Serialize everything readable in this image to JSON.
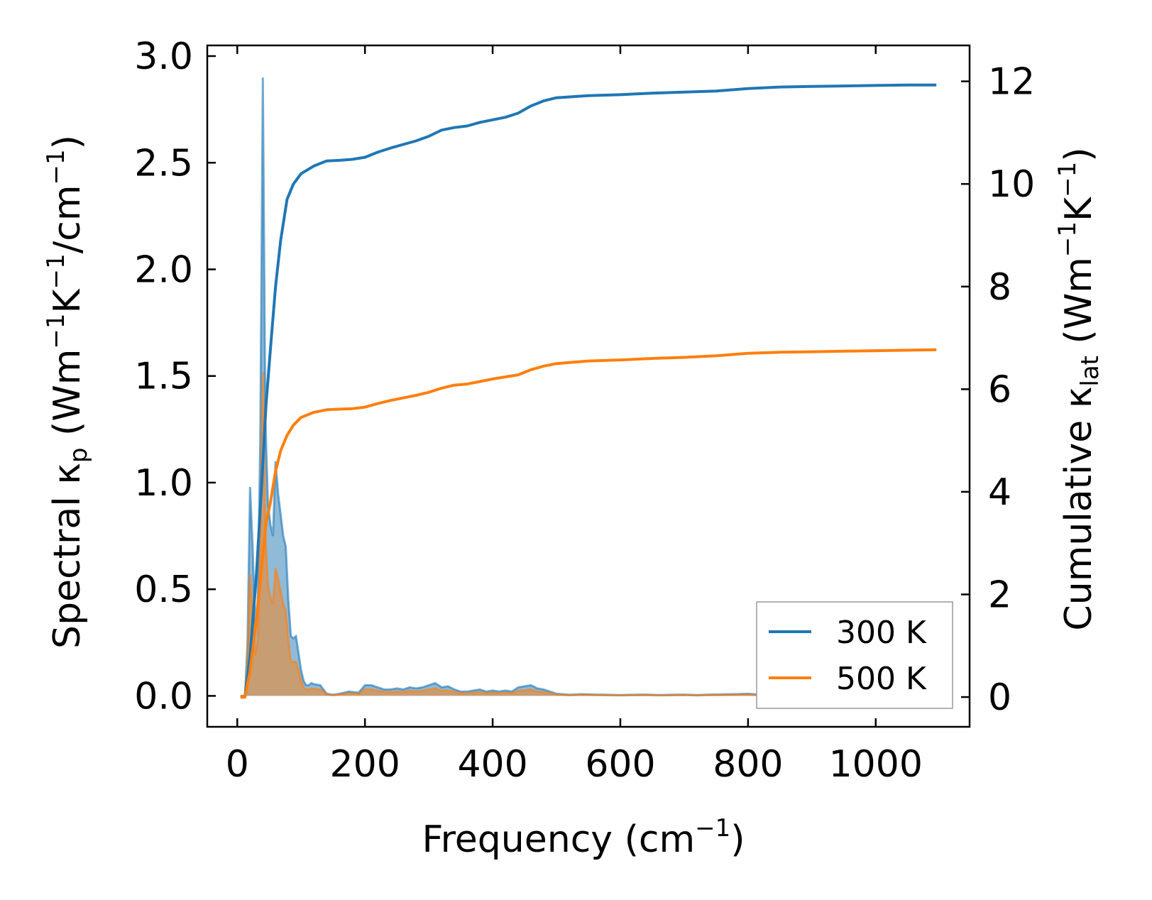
{
  "chart_data": {
    "type": "line",
    "title": "",
    "xlabel": {
      "main": "Frequency (cm",
      "sup": "−1",
      "tail": ")"
    },
    "ylabel_left": {
      "t1": "Spectral κ",
      "sub": "p",
      "t2": " (Wm",
      "sup1": "−1",
      "t3": "K",
      "sup2": "−1",
      "t4": "/cm",
      "sup3": "−1",
      "t5": ")"
    },
    "ylabel_right": {
      "t1": "Cumulative κ",
      "sub": "lat",
      "t2": " (Wm",
      "sup1": "−1",
      "t3": "K",
      "sup2": "−1",
      "t4": ")"
    },
    "xlim": [
      -47,
      1147
    ],
    "ylim_left": [
      -0.145,
      3.05
    ],
    "ylim_right": [
      -0.58,
      12.7
    ],
    "xticks": [
      0,
      200,
      400,
      600,
      800,
      1000
    ],
    "xtick_labels": [
      "0",
      "200",
      "400",
      "600",
      "800",
      "1000"
    ],
    "yticks_left": [
      0.0,
      0.5,
      1.0,
      1.5,
      2.0,
      2.5,
      3.0
    ],
    "ytick_labels_left": [
      "0.0",
      "0.5",
      "1.0",
      "1.5",
      "2.0",
      "2.5",
      "3.0"
    ],
    "yticks_right": [
      0,
      2,
      4,
      6,
      8,
      10,
      12
    ],
    "ytick_labels_right": [
      "0",
      "2",
      "4",
      "6",
      "8",
      "10",
      "12"
    ],
    "grid": false,
    "legend_position": "bottom-right",
    "legend": [
      {
        "label": "300 K",
        "color": "#1f77b4"
      },
      {
        "label": "500 K",
        "color": "#ff7f0e"
      }
    ],
    "cumulative": [
      {
        "name": "300 K",
        "color": "#1f77b4",
        "axis": "right",
        "x": [
          5,
          12,
          20,
          30,
          38,
          45,
          52,
          60,
          68,
          78,
          88,
          100,
          120,
          140,
          160,
          180,
          200,
          220,
          240,
          260,
          280,
          300,
          320,
          340,
          360,
          380,
          400,
          420,
          440,
          460,
          480,
          500,
          550,
          600,
          650,
          700,
          750,
          800,
          850,
          900,
          950,
          1000,
          1050,
          1095
        ],
        "y": [
          0,
          0,
          0.8,
          2.4,
          4.1,
          5.7,
          6.8,
          8.0,
          8.9,
          9.7,
          10.0,
          10.2,
          10.35,
          10.45,
          10.46,
          10.48,
          10.52,
          10.62,
          10.7,
          10.77,
          10.84,
          10.93,
          11.05,
          11.1,
          11.13,
          11.2,
          11.25,
          11.3,
          11.38,
          11.52,
          11.62,
          11.68,
          11.72,
          11.74,
          11.77,
          11.79,
          11.81,
          11.86,
          11.89,
          11.9,
          11.91,
          11.92,
          11.93,
          11.93
        ]
      },
      {
        "name": "500 K",
        "color": "#ff7f0e",
        "axis": "right",
        "x": [
          5,
          12,
          20,
          30,
          38,
          45,
          52,
          60,
          68,
          78,
          88,
          100,
          120,
          140,
          160,
          180,
          200,
          220,
          240,
          260,
          280,
          300,
          320,
          340,
          360,
          380,
          400,
          420,
          440,
          460,
          480,
          500,
          550,
          600,
          650,
          700,
          750,
          800,
          850,
          900,
          950,
          1000,
          1050,
          1095
        ],
        "y": [
          0,
          0,
          0.5,
          1.5,
          2.5,
          3.4,
          3.8,
          4.4,
          4.8,
          5.1,
          5.3,
          5.45,
          5.55,
          5.6,
          5.61,
          5.62,
          5.65,
          5.72,
          5.78,
          5.83,
          5.88,
          5.94,
          6.02,
          6.08,
          6.1,
          6.15,
          6.2,
          6.24,
          6.28,
          6.38,
          6.45,
          6.5,
          6.55,
          6.57,
          6.6,
          6.62,
          6.65,
          6.7,
          6.72,
          6.73,
          6.74,
          6.75,
          6.76,
          6.77
        ]
      }
    ],
    "spectral": [
      {
        "name": "300 K",
        "color": "#1f77b4",
        "axis": "left",
        "x": [
          5,
          12,
          16,
          20,
          24,
          28,
          32,
          36,
          40,
          44,
          48,
          52,
          56,
          60,
          64,
          68,
          72,
          76,
          80,
          84,
          88,
          92,
          96,
          100,
          104,
          108,
          112,
          116,
          120,
          130,
          140,
          150,
          160,
          175,
          190,
          200,
          210,
          220,
          230,
          240,
          250,
          260,
          270,
          280,
          290,
          300,
          310,
          320,
          330,
          340,
          350,
          360,
          370,
          380,
          390,
          400,
          410,
          420,
          430,
          440,
          450,
          460,
          470,
          480,
          490,
          500,
          520,
          540,
          560,
          580,
          600,
          620,
          640,
          660,
          680,
          700,
          720,
          740,
          760,
          780,
          800,
          820,
          840,
          860,
          880,
          900,
          920,
          940,
          960,
          980,
          1000,
          1020,
          1040,
          1060,
          1080,
          1095
        ],
        "y": [
          0,
          0,
          0.25,
          0.98,
          0.7,
          0.33,
          0.45,
          1.2,
          2.9,
          1.3,
          0.9,
          0.8,
          0.75,
          1.1,
          0.95,
          0.85,
          0.75,
          0.7,
          0.45,
          0.28,
          0.27,
          0.28,
          0.2,
          0.12,
          0.07,
          0.05,
          0.05,
          0.06,
          0.055,
          0.05,
          0.01,
          0.005,
          0.01,
          0.02,
          0.015,
          0.05,
          0.05,
          0.04,
          0.03,
          0.03,
          0.035,
          0.03,
          0.04,
          0.035,
          0.04,
          0.05,
          0.06,
          0.04,
          0.045,
          0.03,
          0.02,
          0.02,
          0.025,
          0.03,
          0.02,
          0.025,
          0.02,
          0.025,
          0.02,
          0.04,
          0.045,
          0.05,
          0.035,
          0.03,
          0.02,
          0.01,
          0.005,
          0.008,
          0.006,
          0.005,
          0.004,
          0.005,
          0.006,
          0.004,
          0.005,
          0.006,
          0.004,
          0.006,
          0.007,
          0.008,
          0.01,
          0.005,
          0.004,
          0.004,
          0.003,
          0.003,
          0.003,
          0.003,
          0.004,
          0.004,
          0.005,
          0.004,
          0.003,
          0.003,
          0.003,
          0.003
        ]
      },
      {
        "name": "500 K",
        "color": "#ff7f0e",
        "axis": "left",
        "x": [
          5,
          12,
          16,
          20,
          24,
          28,
          32,
          36,
          40,
          44,
          48,
          52,
          56,
          60,
          64,
          68,
          72,
          76,
          80,
          84,
          88,
          92,
          96,
          100,
          104,
          108,
          112,
          116,
          120,
          130,
          140,
          150,
          160,
          175,
          190,
          200,
          210,
          220,
          230,
          240,
          250,
          260,
          270,
          280,
          290,
          300,
          310,
          320,
          330,
          340,
          350,
          360,
          370,
          380,
          390,
          400,
          410,
          420,
          430,
          440,
          450,
          460,
          470,
          480,
          490,
          500,
          520,
          540,
          560,
          580,
          600,
          620,
          640,
          660,
          680,
          700,
          720,
          740,
          760,
          780,
          800,
          820,
          840,
          860,
          880,
          900,
          920,
          940,
          960,
          980,
          1000,
          1020,
          1040,
          1060,
          1080,
          1095
        ],
        "y": [
          0,
          0,
          0.15,
          0.57,
          0.4,
          0.19,
          0.26,
          0.7,
          1.52,
          0.75,
          0.52,
          0.46,
          0.43,
          0.6,
          0.55,
          0.49,
          0.43,
          0.4,
          0.26,
          0.16,
          0.16,
          0.16,
          0.12,
          0.07,
          0.04,
          0.03,
          0.03,
          0.035,
          0.032,
          0.03,
          0.006,
          0.003,
          0.006,
          0.012,
          0.009,
          0.03,
          0.03,
          0.024,
          0.018,
          0.018,
          0.02,
          0.018,
          0.024,
          0.02,
          0.024,
          0.03,
          0.035,
          0.024,
          0.026,
          0.018,
          0.012,
          0.012,
          0.015,
          0.018,
          0.012,
          0.015,
          0.012,
          0.015,
          0.012,
          0.024,
          0.026,
          0.03,
          0.02,
          0.018,
          0.012,
          0.006,
          0.003,
          0.005,
          0.004,
          0.003,
          0.002,
          0.003,
          0.004,
          0.002,
          0.003,
          0.004,
          0.002,
          0.004,
          0.004,
          0.005,
          0.006,
          0.003,
          0.002,
          0.002,
          0.002,
          0.002,
          0.002,
          0.002,
          0.002,
          0.002,
          0.003,
          0.002,
          0.002,
          0.002,
          0.002,
          0.002
        ]
      }
    ]
  }
}
